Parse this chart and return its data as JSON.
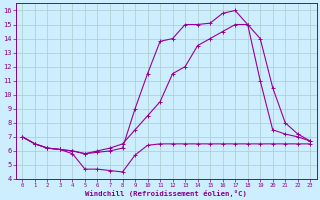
{
  "bg_color": "#cceeff",
  "line_color": "#990099",
  "grid_color": "#aacccc",
  "xlabel": "Windchill (Refroidissement éolien,°C)",
  "xlabel_color": "#880088",
  "tick_color": "#880088",
  "xlim": [
    -0.5,
    23.5
  ],
  "ylim": [
    4,
    16.5
  ],
  "xticks": [
    0,
    1,
    2,
    3,
    4,
    5,
    6,
    7,
    8,
    9,
    10,
    11,
    12,
    13,
    14,
    15,
    16,
    17,
    18,
    19,
    20,
    21,
    22,
    23
  ],
  "yticks": [
    4,
    5,
    6,
    7,
    8,
    9,
    10,
    11,
    12,
    13,
    14,
    15,
    16
  ],
  "line1_x": [
    0,
    1,
    2,
    3,
    4,
    5,
    6,
    7,
    8,
    9,
    10,
    11,
    12,
    13,
    14,
    15,
    16,
    17,
    18,
    19,
    20,
    21,
    22,
    23
  ],
  "line1_y": [
    7.0,
    6.5,
    6.2,
    6.1,
    5.8,
    4.7,
    4.7,
    4.6,
    4.5,
    5.7,
    6.4,
    6.5,
    6.5,
    6.5,
    6.5,
    6.5,
    6.5,
    6.5,
    6.5,
    6.5,
    6.5,
    6.5,
    6.5,
    6.5
  ],
  "line2_x": [
    0,
    1,
    2,
    3,
    4,
    5,
    6,
    7,
    8,
    9,
    10,
    11,
    12,
    13,
    14,
    15,
    16,
    17,
    18,
    19,
    20,
    21,
    22,
    23
  ],
  "line2_y": [
    7.0,
    6.5,
    6.2,
    6.1,
    6.0,
    5.8,
    6.0,
    6.2,
    6.5,
    7.5,
    8.5,
    9.5,
    11.5,
    12.0,
    13.5,
    14.0,
    14.5,
    15.0,
    15.0,
    11.0,
    7.5,
    7.2,
    7.0,
    6.7
  ],
  "line3_x": [
    0,
    1,
    2,
    3,
    4,
    5,
    6,
    7,
    8,
    9,
    10,
    11,
    12,
    13,
    14,
    15,
    16,
    17,
    18,
    19,
    20,
    21,
    22,
    23
  ],
  "line3_y": [
    7.0,
    6.5,
    6.2,
    6.1,
    6.0,
    5.8,
    5.9,
    6.0,
    6.2,
    9.0,
    11.5,
    13.8,
    14.0,
    15.0,
    15.0,
    15.1,
    15.8,
    16.0,
    15.0,
    14.0,
    10.5,
    8.0,
    7.2,
    6.7
  ],
  "figsize": [
    3.2,
    2.0
  ],
  "dpi": 100
}
